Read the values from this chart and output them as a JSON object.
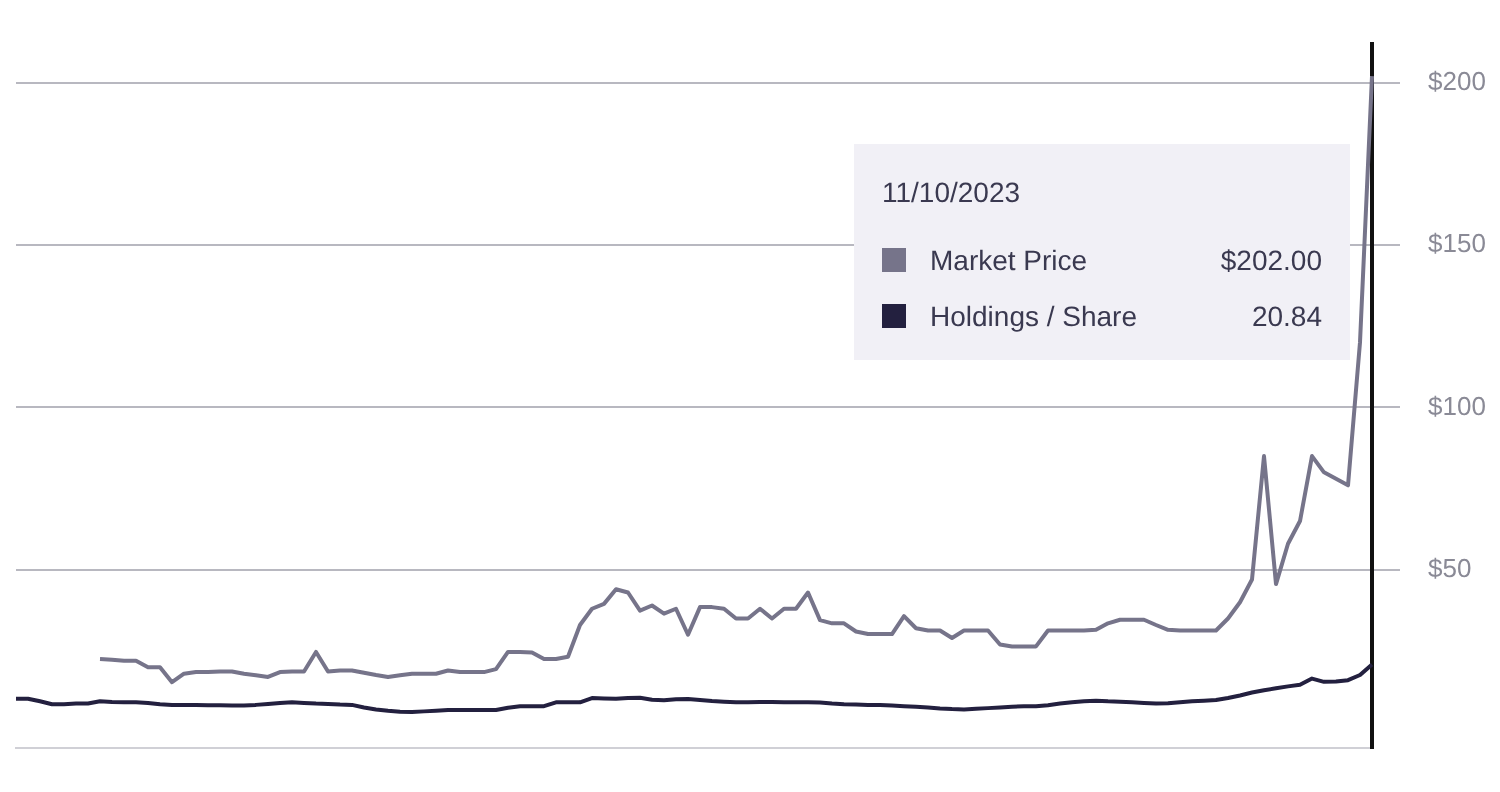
{
  "chart_data": {
    "type": "line",
    "categories": [
      null,
      null,
      null,
      null,
      null,
      null,
      null,
      null,
      null,
      null,
      null,
      null,
      null,
      null,
      null,
      null,
      null,
      null,
      null,
      null,
      null,
      null,
      null,
      null,
      null,
      null,
      null,
      null,
      null,
      null,
      null,
      null,
      null,
      null,
      null,
      null,
      null,
      null,
      null,
      null,
      null,
      null,
      null,
      null,
      null,
      null,
      null,
      null,
      null,
      null,
      null,
      null,
      null,
      null,
      null,
      null,
      null,
      null,
      null,
      null,
      null,
      null,
      null,
      null,
      null,
      null,
      null,
      null,
      null,
      null,
      null,
      null,
      null,
      null,
      null,
      null,
      null,
      null,
      null,
      null,
      null,
      null,
      null,
      null,
      null,
      null,
      null,
      null,
      null,
      null,
      null,
      null,
      null,
      null,
      null,
      null,
      null,
      null,
      null,
      null,
      null,
      null,
      null,
      null,
      null,
      null,
      null,
      null,
      null,
      null,
      null,
      null,
      null,
      null
    ],
    "series": [
      {
        "name": "Market Price",
        "color": "#76748a",
        "values": [
          null,
          null,
          null,
          null,
          null,
          null,
          null,
          22.5,
          22.3,
          22,
          22,
          20,
          20,
          15.4,
          18,
          18.5,
          18.5,
          18.7,
          18.7,
          18,
          17.5,
          17,
          18.5,
          18.7,
          18.7,
          24.7,
          18.7,
          19,
          19,
          18.3,
          17.6,
          17,
          17.5,
          18,
          18,
          18,
          19,
          18.5,
          18.5,
          18.5,
          19.4,
          24.7,
          24.7,
          24.5,
          22.5,
          22.5,
          23.2,
          33,
          38,
          39.5,
          44,
          43,
          37.4,
          39,
          36.5,
          38,
          30,
          38.5,
          38.5,
          38,
          35,
          35,
          38,
          35,
          38,
          38,
          43,
          34.5,
          33.5,
          33.5,
          31,
          30.2,
          30.2,
          30.2,
          35.7,
          32,
          31.3,
          31.3,
          29,
          31.3,
          31.3,
          31.3,
          27,
          26.4,
          26.4,
          26.4,
          31.3,
          31.3,
          31.3,
          31.3,
          31.5,
          33.5,
          34.6,
          34.6,
          34.6,
          33,
          31.5,
          31.3,
          31.3,
          31.3,
          31.3,
          35,
          40,
          47,
          85,
          45.6,
          58,
          65,
          85,
          80,
          78,
          76,
          120,
          202
        ]
      },
      {
        "name": "Holdings / Share",
        "color": "#23203f",
        "values": [
          10.3,
          10.3,
          9.5,
          8.6,
          8.6,
          8.8,
          8.8,
          9.5,
          9.3,
          9.2,
          9.2,
          9,
          8.6,
          8.4,
          8.4,
          8.4,
          8.3,
          8.3,
          8.2,
          8.2,
          8.4,
          8.7,
          9,
          9.2,
          9,
          8.8,
          8.7,
          8.5,
          8.4,
          7.6,
          7,
          6.6,
          6.3,
          6.2,
          6.4,
          6.6,
          6.8,
          6.8,
          6.8,
          6.8,
          6.8,
          7.5,
          8,
          8,
          8,
          9.2,
          9.2,
          9.2,
          10.5,
          10.4,
          10.3,
          10.5,
          10.6,
          10,
          9.8,
          10.1,
          10.2,
          9.9,
          9.6,
          9.4,
          9.2,
          9.2,
          9.3,
          9.3,
          9.2,
          9.2,
          9.2,
          9.1,
          8.8,
          8.6,
          8.5,
          8.4,
          8.4,
          8.2,
          8,
          7.8,
          7.6,
          7.3,
          7.1,
          7,
          7.2,
          7.4,
          7.6,
          7.8,
          8,
          8,
          8.3,
          8.8,
          9.2,
          9.5,
          9.7,
          9.5,
          9.4,
          9.2,
          9,
          8.8,
          8.9,
          9.2,
          9.5,
          9.7,
          9.9,
          10.5,
          11.3,
          12.2,
          12.9,
          13.5,
          14.1,
          14.6,
          16.5,
          15.5,
          15.6,
          16,
          17.6,
          20.84
        ]
      }
    ],
    "ylim": [
      -5,
      212
    ],
    "yticks": [
      {
        "value": 50,
        "label": "$50"
      },
      {
        "value": 100,
        "label": "$100"
      },
      {
        "value": 150,
        "label": "$150"
      },
      {
        "value": 200,
        "label": "$200"
      }
    ],
    "grid": "y",
    "legend": "top right",
    "marker": "none",
    "line_style": "solid",
    "annotations": [
      "11/10/2023",
      "$202.00",
      "20.84"
    ]
  }
}
